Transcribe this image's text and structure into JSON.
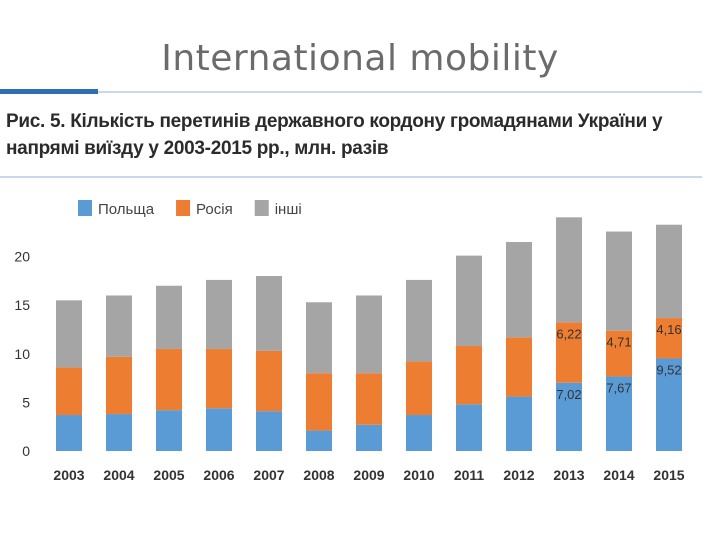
{
  "slide": {
    "title": "International mobility"
  },
  "figure": {
    "caption": "Рис. 5. Кількість перетинів державного кордону громадянами України у напрямі виїзду у 2003-2015 рр., млн. разів"
  },
  "colors": {
    "poland": "#5b9bd5",
    "russia": "#ed7d31",
    "other": "#a5a5a5",
    "axis_text": "#333333",
    "accent_rule": "#2f6db5"
  },
  "chart_data": {
    "type": "bar",
    "stacked": true,
    "title": "",
    "xlabel": "",
    "ylabel": "",
    "ylim": [
      0,
      22
    ],
    "yticks": [
      0,
      5,
      10,
      15,
      20
    ],
    "grid": false,
    "legend_position": "top-left",
    "categories": [
      "2003",
      "2004",
      "2005",
      "2006",
      "2007",
      "2008",
      "2009",
      "2010",
      "2011",
      "2012",
      "2013",
      "2014",
      "2015"
    ],
    "series": [
      {
        "name": "Польща",
        "color": "#5b9bd5",
        "values": [
          3.7,
          3.8,
          4.2,
          4.4,
          4.1,
          2.1,
          2.7,
          3.7,
          4.8,
          5.6,
          7.02,
          7.67,
          9.52
        ],
        "labels": [
          "",
          "",
          "",
          "",
          "",
          "",
          "",
          "",
          "",
          "",
          "7,02",
          "7,67",
          "9,52"
        ]
      },
      {
        "name": "Росія",
        "color": "#ed7d31",
        "values": [
          4.9,
          5.9,
          6.3,
          6.1,
          6.2,
          5.9,
          5.3,
          5.5,
          6.0,
          6.1,
          6.22,
          4.71,
          4.16
        ],
        "labels": [
          "",
          "",
          "",
          "",
          "",
          "",
          "",
          "",
          "",
          "",
          "6,22",
          "4,71",
          "4,16"
        ]
      },
      {
        "name": "інші",
        "color": "#a5a5a5",
        "values": [
          6.9,
          6.3,
          6.5,
          7.1,
          7.7,
          7.3,
          8.0,
          8.4,
          9.3,
          9.8,
          10.8,
          10.2,
          9.6
        ],
        "labels": [
          "",
          "",
          "",
          "",
          "",
          "",
          "",
          "",
          "",
          "",
          "",
          "",
          ""
        ]
      }
    ]
  }
}
